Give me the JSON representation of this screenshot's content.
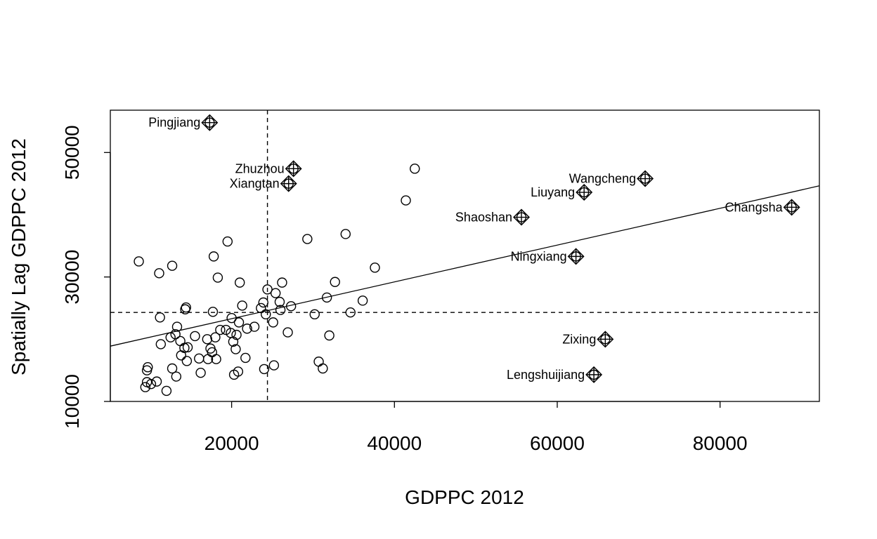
{
  "chart_data": {
    "type": "scatter",
    "title": "",
    "xlabel": "GDPPC 2012",
    "ylabel": "Spatially Lag GDPPC 2012",
    "xlim": [
      5100,
      92200
    ],
    "ylim": [
      10000,
      56800
    ],
    "x_ticks": [
      20000,
      40000,
      60000,
      80000
    ],
    "y_ticks": [
      10000,
      30000,
      50000
    ],
    "grid": false,
    "legend": "none",
    "reference_lines": {
      "mean_x": 24400,
      "mean_y": 24300
    },
    "regression_line": {
      "intercept": 17380,
      "slope": 0.2957
    },
    "points": [
      {
        "x": 8600,
        "y": 32500
      },
      {
        "x": 9400,
        "y": 12300
      },
      {
        "x": 9600,
        "y": 15000
      },
      {
        "x": 9600,
        "y": 13100
      },
      {
        "x": 9700,
        "y": 15500
      },
      {
        "x": 10100,
        "y": 12800
      },
      {
        "x": 10800,
        "y": 13200
      },
      {
        "x": 11100,
        "y": 30600
      },
      {
        "x": 11200,
        "y": 23500
      },
      {
        "x": 11300,
        "y": 19200
      },
      {
        "x": 12000,
        "y": 11700
      },
      {
        "x": 12500,
        "y": 20300
      },
      {
        "x": 12700,
        "y": 15300
      },
      {
        "x": 12700,
        "y": 31800
      },
      {
        "x": 13100,
        "y": 20800
      },
      {
        "x": 13200,
        "y": 14000
      },
      {
        "x": 13300,
        "y": 22000
      },
      {
        "x": 13700,
        "y": 19700
      },
      {
        "x": 13800,
        "y": 17400
      },
      {
        "x": 14200,
        "y": 18600
      },
      {
        "x": 14300,
        "y": 24800
      },
      {
        "x": 14400,
        "y": 25100
      },
      {
        "x": 14500,
        "y": 16500
      },
      {
        "x": 14600,
        "y": 18700
      },
      {
        "x": 15500,
        "y": 20500
      },
      {
        "x": 16000,
        "y": 16900
      },
      {
        "x": 16200,
        "y": 14600
      },
      {
        "x": 17000,
        "y": 20000
      },
      {
        "x": 17100,
        "y": 16800
      },
      {
        "x": 17400,
        "y": 18500
      },
      {
        "x": 17600,
        "y": 17900
      },
      {
        "x": 17700,
        "y": 24400
      },
      {
        "x": 17800,
        "y": 33300
      },
      {
        "x": 18000,
        "y": 20300
      },
      {
        "x": 18100,
        "y": 16800
      },
      {
        "x": 18300,
        "y": 29900
      },
      {
        "x": 18600,
        "y": 21500
      },
      {
        "x": 19300,
        "y": 21500
      },
      {
        "x": 19500,
        "y": 35700
      },
      {
        "x": 19900,
        "y": 21000
      },
      {
        "x": 20000,
        "y": 23400
      },
      {
        "x": 20200,
        "y": 19600
      },
      {
        "x": 20300,
        "y": 14300
      },
      {
        "x": 20500,
        "y": 18400
      },
      {
        "x": 20600,
        "y": 20700
      },
      {
        "x": 20800,
        "y": 14800
      },
      {
        "x": 20900,
        "y": 22700
      },
      {
        "x": 21000,
        "y": 29100
      },
      {
        "x": 21300,
        "y": 25400
      },
      {
        "x": 21700,
        "y": 17000
      },
      {
        "x": 21900,
        "y": 21700
      },
      {
        "x": 22800,
        "y": 22000
      },
      {
        "x": 23600,
        "y": 25000
      },
      {
        "x": 23900,
        "y": 25900
      },
      {
        "x": 24000,
        "y": 15200
      },
      {
        "x": 24200,
        "y": 24000
      },
      {
        "x": 24400,
        "y": 28000
      },
      {
        "x": 25100,
        "y": 22700
      },
      {
        "x": 25200,
        "y": 15800
      },
      {
        "x": 25400,
        "y": 27400
      },
      {
        "x": 25900,
        "y": 26000
      },
      {
        "x": 26000,
        "y": 24700
      },
      {
        "x": 26200,
        "y": 29100
      },
      {
        "x": 26900,
        "y": 21100
      },
      {
        "x": 27300,
        "y": 25300
      },
      {
        "x": 29300,
        "y": 36100
      },
      {
        "x": 30200,
        "y": 24000
      },
      {
        "x": 30700,
        "y": 16400
      },
      {
        "x": 31200,
        "y": 15300
      },
      {
        "x": 31700,
        "y": 26700
      },
      {
        "x": 32000,
        "y": 20600
      },
      {
        "x": 32700,
        "y": 29200
      },
      {
        "x": 34000,
        "y": 36900
      },
      {
        "x": 34600,
        "y": 24300
      },
      {
        "x": 36100,
        "y": 26200
      },
      {
        "x": 37600,
        "y": 31500
      },
      {
        "x": 41400,
        "y": 42300
      },
      {
        "x": 42500,
        "y": 47400
      }
    ],
    "labeled_points": [
      {
        "name": "Pingjiang",
        "x": 17300,
        "y": 54800
      },
      {
        "name": "Zhuzhou",
        "x": 27600,
        "y": 47400
      },
      {
        "name": "Xiangtan",
        "x": 27000,
        "y": 45000
      },
      {
        "name": "Wangcheng",
        "x": 70800,
        "y": 45800
      },
      {
        "name": "Liuyang",
        "x": 63300,
        "y": 43600
      },
      {
        "name": "Changsha",
        "x": 88800,
        "y": 41200
      },
      {
        "name": "Shaoshan",
        "x": 55600,
        "y": 39600
      },
      {
        "name": "Ningxiang",
        "x": 62300,
        "y": 33300
      },
      {
        "name": "Zixing",
        "x": 65900,
        "y": 20000
      },
      {
        "name": "Lengshuijiang",
        "x": 64500,
        "y": 14300
      }
    ]
  }
}
